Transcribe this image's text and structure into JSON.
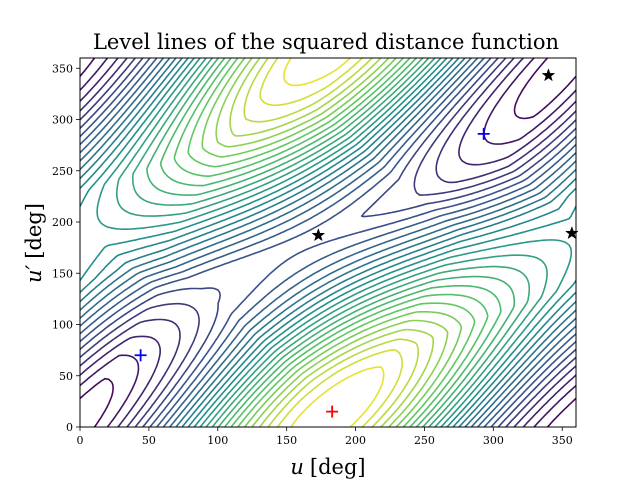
{
  "chart_data": {
    "type": "contour",
    "title": "Level lines of the squared distance function",
    "xlabel": {
      "symbol": "u",
      "unit": "[deg]"
    },
    "ylabel": {
      "symbol": "u′",
      "unit": "[deg]"
    },
    "xlim": [
      0,
      360
    ],
    "ylim": [
      0,
      360
    ],
    "xticks": [
      0,
      50,
      100,
      150,
      200,
      250,
      300,
      350
    ],
    "yticks": [
      0,
      50,
      100,
      150,
      200,
      250,
      300,
      350
    ],
    "colormap": "viridis",
    "colormap_stops": [
      "#440154",
      "#3b528b",
      "#21918c",
      "#5ec962",
      "#fde725"
    ],
    "grid": false,
    "legend": "none",
    "markers": [
      {
        "kind": "min",
        "shape": "plus",
        "color": "#0000ff",
        "x": 44,
        "y": 70
      },
      {
        "kind": "min",
        "shape": "plus",
        "color": "#0000ff",
        "x": 293,
        "y": 286
      },
      {
        "kind": "max",
        "shape": "plus",
        "color": "#ff0000",
        "x": 183,
        "y": 15
      },
      {
        "kind": "saddle",
        "shape": "star",
        "color": "#000000",
        "x": 173,
        "y": 187
      },
      {
        "kind": "saddle",
        "shape": "star",
        "color": "#000000",
        "x": 340,
        "y": 343
      },
      {
        "kind": "saddle",
        "shape": "star",
        "color": "#000000",
        "x": 357,
        "y": 189
      }
    ]
  }
}
